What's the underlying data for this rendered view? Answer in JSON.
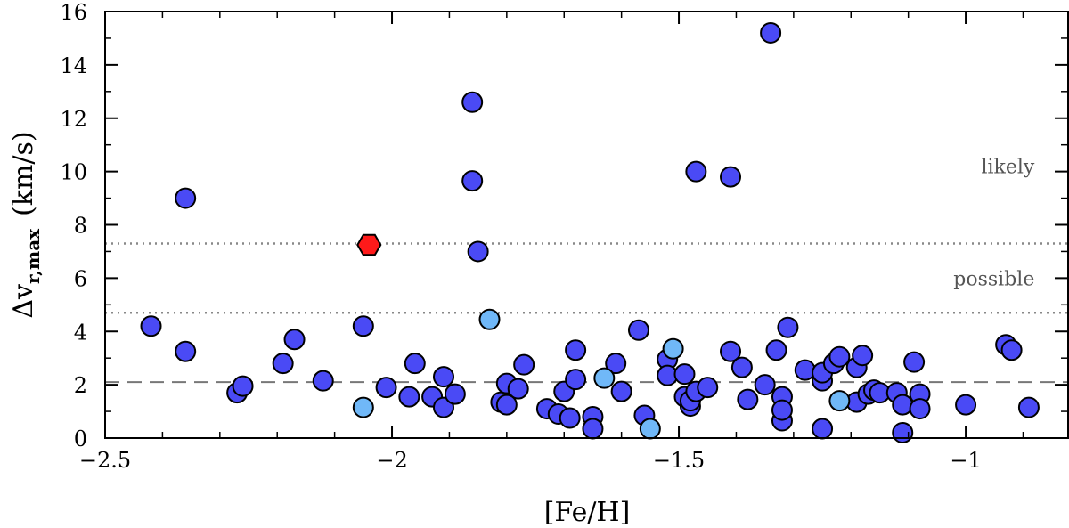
{
  "chart_data": {
    "type": "scatter",
    "title": "",
    "xlabel": "[Fe/H]",
    "ylabel_main": "Δv",
    "ylabel_sub": "r,max",
    "ylabel_unit": "(km/s)",
    "xlim": [
      -2.5,
      -0.82
    ],
    "ylim": [
      0,
      16
    ],
    "x_ticks": [
      -2.5,
      -2,
      -1.5,
      -1
    ],
    "x_tick_labels": [
      "−2.5",
      "−2",
      "−1.5",
      "−1"
    ],
    "y_ticks": [
      0,
      2,
      4,
      6,
      8,
      10,
      12,
      14,
      16
    ],
    "y_tick_labels": [
      "0",
      "2",
      "4",
      "6",
      "8",
      "10",
      "12",
      "14",
      "16"
    ],
    "reference_lines": [
      {
        "name": "likely-threshold",
        "y": 7.3,
        "style": "dotted"
      },
      {
        "name": "possible-threshold",
        "y": 4.7,
        "style": "dotted"
      },
      {
        "name": "median-line",
        "y": 2.1,
        "style": "dashed"
      }
    ],
    "annotations": [
      {
        "text": "likely",
        "x": -0.88,
        "y": 10.2
      },
      {
        "text": "possible",
        "x": -0.88,
        "y": 6.0
      }
    ],
    "colors": {
      "main": "#4a4af5",
      "light": "#70b8f8",
      "highlight": "#ff1a1a"
    },
    "series": [
      {
        "name": "main",
        "marker": "circle",
        "points": [
          [
            -2.42,
            4.2
          ],
          [
            -2.36,
            9.0
          ],
          [
            -2.36,
            3.25
          ],
          [
            -2.27,
            1.7
          ],
          [
            -2.26,
            1.95
          ],
          [
            -2.19,
            2.8
          ],
          [
            -2.17,
            3.7
          ],
          [
            -2.12,
            2.15
          ],
          [
            -2.05,
            4.2
          ],
          [
            -2.01,
            1.9
          ],
          [
            -1.97,
            1.55
          ],
          [
            -1.96,
            2.8
          ],
          [
            -1.93,
            1.55
          ],
          [
            -1.91,
            1.15
          ],
          [
            -1.91,
            2.3
          ],
          [
            -1.89,
            1.65
          ],
          [
            -1.86,
            12.6
          ],
          [
            -1.86,
            9.65
          ],
          [
            -1.85,
            7.0
          ],
          [
            -1.81,
            1.35
          ],
          [
            -1.8,
            1.25
          ],
          [
            -1.8,
            2.05
          ],
          [
            -1.78,
            1.85
          ],
          [
            -1.77,
            2.75
          ],
          [
            -1.73,
            1.1
          ],
          [
            -1.71,
            0.9
          ],
          [
            -1.7,
            1.75
          ],
          [
            -1.69,
            0.75
          ],
          [
            -1.68,
            2.2
          ],
          [
            -1.68,
            3.3
          ],
          [
            -1.65,
            0.8
          ],
          [
            -1.65,
            0.35
          ],
          [
            -1.61,
            2.8
          ],
          [
            -1.6,
            1.75
          ],
          [
            -1.57,
            4.05
          ],
          [
            -1.56,
            0.85
          ],
          [
            -1.52,
            2.95
          ],
          [
            -1.52,
            2.35
          ],
          [
            -1.49,
            2.4
          ],
          [
            -1.49,
            1.55
          ],
          [
            -1.48,
            1.2
          ],
          [
            -1.48,
            1.4
          ],
          [
            -1.47,
            1.75
          ],
          [
            -1.47,
            10.0
          ],
          [
            -1.45,
            1.9
          ],
          [
            -1.41,
            9.8
          ],
          [
            -1.41,
            3.25
          ],
          [
            -1.39,
            2.65
          ],
          [
            -1.38,
            1.45
          ],
          [
            -1.35,
            2.0
          ],
          [
            -1.34,
            15.2
          ],
          [
            -1.33,
            3.3
          ],
          [
            -1.32,
            1.55
          ],
          [
            -1.32,
            0.65
          ],
          [
            -1.32,
            1.05
          ],
          [
            -1.31,
            4.15
          ],
          [
            -1.28,
            2.55
          ],
          [
            -1.25,
            0.35
          ],
          [
            -1.25,
            2.15
          ],
          [
            -1.25,
            2.45
          ],
          [
            -1.23,
            2.8
          ],
          [
            -1.22,
            3.05
          ],
          [
            -1.19,
            1.35
          ],
          [
            -1.19,
            2.65
          ],
          [
            -1.18,
            3.1
          ],
          [
            -1.17,
            1.65
          ],
          [
            -1.16,
            1.8
          ],
          [
            -1.15,
            1.7
          ],
          [
            -1.12,
            1.7
          ],
          [
            -1.11,
            1.25
          ],
          [
            -1.11,
            0.2
          ],
          [
            -1.09,
            2.85
          ],
          [
            -1.08,
            1.65
          ],
          [
            -1.08,
            1.1
          ],
          [
            -1.0,
            1.25
          ],
          [
            -0.93,
            3.5
          ],
          [
            -0.92,
            3.3
          ],
          [
            -0.89,
            1.15
          ]
        ]
      },
      {
        "name": "light",
        "marker": "circle",
        "points": [
          [
            -2.05,
            1.15
          ],
          [
            -1.83,
            4.45
          ],
          [
            -1.63,
            2.25
          ],
          [
            -1.55,
            0.35
          ],
          [
            -1.51,
            3.35
          ],
          [
            -1.22,
            1.4
          ]
        ]
      },
      {
        "name": "highlight",
        "marker": "hexagon",
        "points": [
          [
            -2.04,
            7.25
          ]
        ]
      }
    ]
  }
}
